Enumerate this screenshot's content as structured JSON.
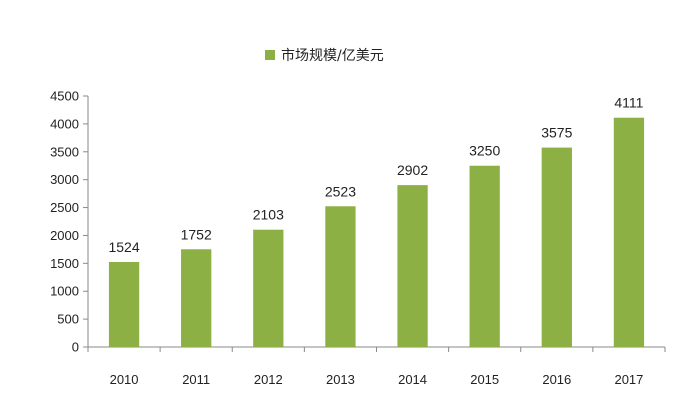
{
  "chart_data": {
    "type": "bar",
    "title": "",
    "xlabel": "",
    "ylabel": "",
    "categories": [
      "2010",
      "2011",
      "2012",
      "2013",
      "2014",
      "2015",
      "2016",
      "2017"
    ],
    "series": [
      {
        "name": "市场规模/亿美元",
        "values": [
          1524,
          1752,
          2103,
          2523,
          2902,
          3250,
          3575,
          4111
        ]
      }
    ],
    "ylim": [
      0,
      4500
    ],
    "yticks": [
      0,
      500,
      1000,
      1500,
      2000,
      2500,
      3000,
      3500,
      4000,
      4500
    ],
    "grid": false,
    "legend": "top-center",
    "data_labels": true,
    "colors": {
      "bar": "#8db045",
      "axis": "#8a8a8a",
      "text": "#222222"
    }
  }
}
